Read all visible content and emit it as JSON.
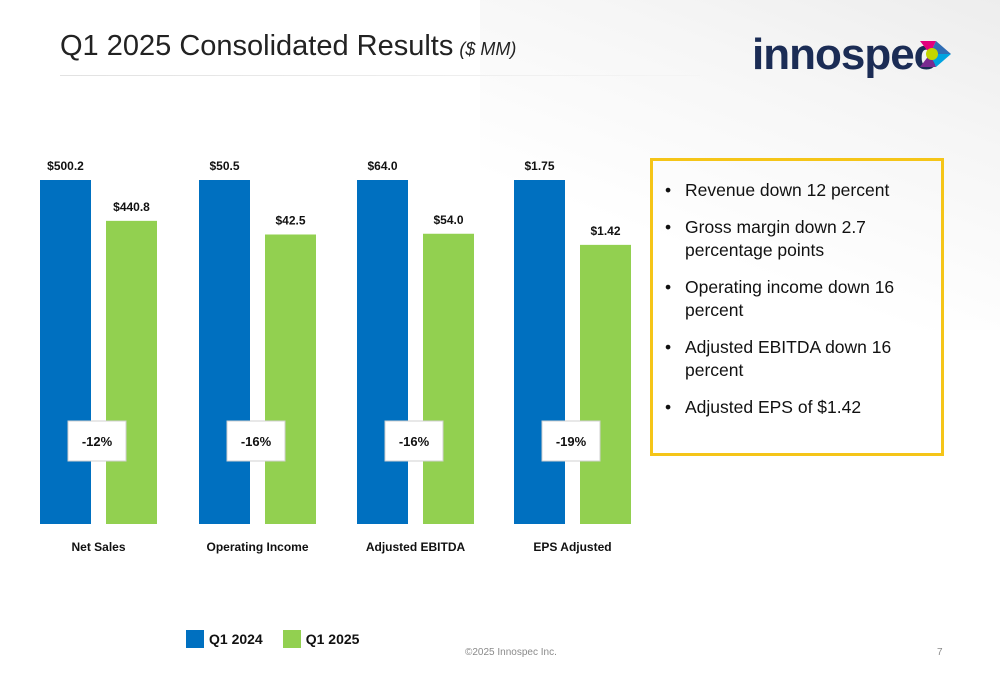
{
  "header": {
    "title": "Q1 2025 Consolidated Results",
    "subtitle": "($ MM)"
  },
  "logo": {
    "text": "innospec"
  },
  "colors": {
    "q1_2024": "#0070c0",
    "q1_2025": "#92d050",
    "highlight_border": "#f5c518"
  },
  "chart_data": {
    "type": "bar",
    "categories": [
      "Net Sales",
      "Operating Income",
      "Adjusted EBITDA",
      "EPS Adjusted"
    ],
    "series": [
      {
        "name": "Q1 2024",
        "values": [
          500.2,
          50.5,
          64.0,
          1.75
        ],
        "labels": [
          "$500.2",
          "$50.5",
          "$64.0",
          "$1.75"
        ]
      },
      {
        "name": "Q1 2025",
        "values": [
          440.8,
          42.5,
          54.0,
          1.42
        ],
        "labels": [
          "$440.8",
          "$42.5",
          "$54.0",
          "$1.42"
        ]
      }
    ],
    "change_labels": [
      "-12%",
      "-16%",
      "-16%",
      "-19%"
    ],
    "scale": "each category scaled independently",
    "legend": "bottom-left"
  },
  "highlights": [
    "Revenue down 12 percent",
    "Gross margin down 2.7 percentage points",
    "Operating income down 16 percent",
    "Adjusted EBITDA down 16 percent",
    "Adjusted EPS of $1.42"
  ],
  "footer": {
    "copyright": "©2025 Innospec Inc.",
    "page": "7"
  }
}
